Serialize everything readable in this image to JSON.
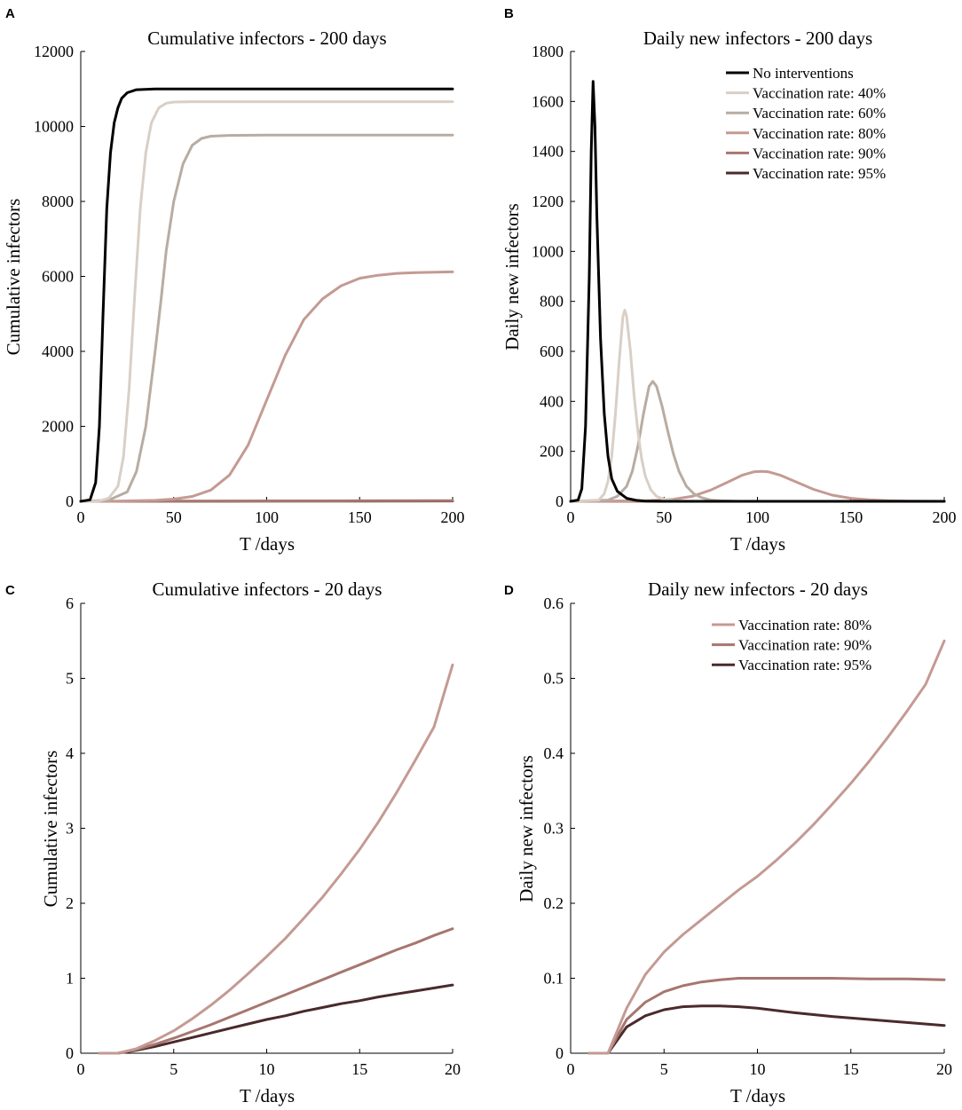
{
  "figure": {
    "colors": {
      "no_interventions": "#000000",
      "vacc40": "#d9cfc6",
      "vacc60": "#b8aca2",
      "vacc80": "#c49a93",
      "vacc90": "#a77670",
      "vacc95": "#4a2a2c"
    }
  },
  "chart_data": [
    {
      "panel": "A",
      "type": "line",
      "title": "Cumulative infectors - 200 days",
      "xlabel": "T /days",
      "ylabel": "Cumulative infectors",
      "xlim": [
        0,
        200
      ],
      "ylim": [
        0,
        12000
      ],
      "xticks": [
        "0",
        "50",
        "100",
        "150",
        "200"
      ],
      "yticks": [
        "0",
        "2000",
        "4000",
        "6000",
        "8000",
        "10000",
        "12000"
      ],
      "legend": null,
      "series": [
        {
          "name": "No interventions",
          "color": "#000000",
          "x": [
            0,
            5,
            8,
            10,
            12,
            14,
            16,
            18,
            20,
            22,
            25,
            30,
            40,
            50,
            100,
            200
          ],
          "y": [
            0,
            40,
            500,
            2000,
            5000,
            7800,
            9300,
            10100,
            10500,
            10750,
            10900,
            10980,
            11000,
            11000,
            11000,
            11000
          ]
        },
        {
          "name": "Vaccination rate: 40%",
          "color": "#d9cfc6",
          "x": [
            0,
            10,
            15,
            20,
            23,
            26,
            29,
            32,
            35,
            38,
            42,
            46,
            50,
            60,
            100,
            200
          ],
          "y": [
            0,
            10,
            80,
            400,
            1200,
            3000,
            5500,
            7800,
            9300,
            10100,
            10500,
            10620,
            10650,
            10660,
            10660,
            10660
          ]
        },
        {
          "name": "Vaccination rate: 60%",
          "color": "#b8aca2",
          "x": [
            0,
            15,
            25,
            30,
            35,
            40,
            43,
            46,
            50,
            55,
            60,
            65,
            70,
            80,
            100,
            200
          ],
          "y": [
            0,
            30,
            250,
            800,
            2000,
            4000,
            5300,
            6700,
            8000,
            9000,
            9500,
            9680,
            9740,
            9760,
            9770,
            9770
          ]
        },
        {
          "name": "Vaccination rate: 80%",
          "color": "#c49a93",
          "x": [
            0,
            20,
            40,
            50,
            60,
            70,
            80,
            90,
            100,
            110,
            120,
            130,
            140,
            150,
            160,
            170,
            180,
            200
          ],
          "y": [
            0,
            5,
            25,
            60,
            130,
            300,
            700,
            1500,
            2700,
            3900,
            4850,
            5400,
            5750,
            5950,
            6030,
            6080,
            6100,
            6120
          ]
        },
        {
          "name": "Vaccination rate: 90%",
          "color": "#a77670",
          "x": [
            0,
            50,
            100,
            150,
            200
          ],
          "y": [
            0,
            3,
            8,
            14,
            20
          ]
        },
        {
          "name": "Vaccination rate: 95%",
          "color": "#4a2a2c",
          "x": [
            0,
            50,
            100,
            150,
            200
          ],
          "y": [
            0,
            2,
            4,
            7,
            10
          ]
        }
      ]
    },
    {
      "panel": "B",
      "type": "line",
      "title": "Daily new infectors - 200 days",
      "xlabel": "T /days",
      "ylabel": "Daily new infectors",
      "xlim": [
        0,
        200
      ],
      "ylim": [
        0,
        1800
      ],
      "xticks": [
        "0",
        "50",
        "100",
        "150",
        "200"
      ],
      "yticks": [
        "0",
        "200",
        "400",
        "600",
        "800",
        "1000",
        "1200",
        "1400",
        "1600",
        "1800"
      ],
      "legend": "top-right",
      "series": [
        {
          "name": "No interventions",
          "color": "#000000",
          "x": [
            0,
            4,
            6,
            8,
            10,
            11,
            12,
            13,
            14,
            16,
            18,
            20,
            22,
            25,
            30,
            35,
            40,
            50,
            200
          ],
          "y": [
            0,
            5,
            50,
            300,
            900,
            1400,
            1680,
            1500,
            1150,
            650,
            350,
            180,
            90,
            40,
            12,
            4,
            1,
            0,
            0
          ]
        },
        {
          "name": "Vaccination rate: 40%",
          "color": "#d9cfc6",
          "x": [
            0,
            15,
            18,
            20,
            22,
            24,
            26,
            28,
            29,
            30,
            32,
            34,
            36,
            38,
            40,
            43,
            46,
            50,
            55,
            60,
            70,
            200
          ],
          "y": [
            0,
            5,
            30,
            80,
            180,
            350,
            560,
            740,
            765,
            740,
            600,
            420,
            280,
            170,
            100,
            45,
            20,
            8,
            2,
            0,
            0,
            0
          ]
        },
        {
          "name": "Vaccination rate: 60%",
          "color": "#b8aca2",
          "x": [
            0,
            20,
            25,
            30,
            33,
            36,
            39,
            42,
            44,
            46,
            49,
            52,
            55,
            58,
            62,
            66,
            70,
            75,
            80,
            90,
            200
          ],
          "y": [
            0,
            5,
            20,
            60,
            120,
            220,
            350,
            460,
            480,
            460,
            380,
            280,
            190,
            120,
            60,
            30,
            15,
            5,
            2,
            0,
            0
          ]
        },
        {
          "name": "Vaccination rate: 80%",
          "color": "#c49a93",
          "x": [
            0,
            40,
            55,
            65,
            75,
            85,
            92,
            98,
            102,
            106,
            112,
            120,
            130,
            140,
            150,
            160,
            170,
            180,
            200
          ],
          "y": [
            0,
            2,
            8,
            20,
            45,
            80,
            105,
            118,
            120,
            118,
            105,
            80,
            48,
            25,
            12,
            6,
            3,
            1,
            0
          ]
        },
        {
          "name": "Vaccination rate: 90%",
          "color": "#a77670",
          "x": [
            0,
            100,
            200
          ],
          "y": [
            0,
            0.1,
            0.1
          ]
        },
        {
          "name": "Vaccination rate: 95%",
          "color": "#4a2a2c",
          "x": [
            0,
            100,
            200
          ],
          "y": [
            0,
            0.05,
            0.04
          ]
        }
      ]
    },
    {
      "panel": "C",
      "type": "line",
      "title": "Cumulative infectors - 20 days",
      "xlabel": "T /days",
      "ylabel": "Cumulative infectors",
      "xlim": [
        0,
        20
      ],
      "ylim": [
        0,
        6
      ],
      "xticks": [
        "0",
        "5",
        "10",
        "15",
        "20"
      ],
      "yticks": [
        "0",
        "1",
        "2",
        "3",
        "4",
        "5",
        "6"
      ],
      "legend": null,
      "series": [
        {
          "name": "Vaccination rate: 80%",
          "color": "#c49a93",
          "x": [
            1,
            2,
            3,
            4,
            5,
            6,
            7,
            8,
            9,
            10,
            11,
            12,
            13,
            14,
            15,
            16,
            17,
            18,
            19,
            20
          ],
          "y": [
            0,
            0,
            0.06,
            0.17,
            0.3,
            0.46,
            0.64,
            0.84,
            1.06,
            1.29,
            1.53,
            1.8,
            2.08,
            2.39,
            2.72,
            3.08,
            3.48,
            3.91,
            4.35,
            5.18
          ]
        },
        {
          "name": "Vaccination rate: 90%",
          "color": "#a77670",
          "x": [
            1,
            2,
            3,
            4,
            5,
            6,
            7,
            8,
            9,
            10,
            11,
            12,
            13,
            14,
            15,
            16,
            17,
            18,
            19,
            20
          ],
          "y": [
            0,
            0,
            0.05,
            0.12,
            0.2,
            0.29,
            0.38,
            0.48,
            0.58,
            0.68,
            0.78,
            0.88,
            0.98,
            1.08,
            1.18,
            1.28,
            1.38,
            1.47,
            1.57,
            1.66
          ]
        },
        {
          "name": "Vaccination rate: 95%",
          "color": "#4a2a2c",
          "x": [
            1,
            2,
            3,
            4,
            5,
            6,
            7,
            8,
            9,
            10,
            11,
            12,
            13,
            14,
            15,
            16,
            17,
            18,
            19,
            20
          ],
          "y": [
            0,
            0,
            0.04,
            0.09,
            0.15,
            0.21,
            0.27,
            0.33,
            0.39,
            0.45,
            0.5,
            0.56,
            0.61,
            0.66,
            0.7,
            0.75,
            0.79,
            0.83,
            0.87,
            0.91
          ]
        }
      ]
    },
    {
      "panel": "D",
      "type": "line",
      "title": "Daily new infectors - 20 days",
      "xlabel": "T /days",
      "ylabel": "Daily new infectors",
      "xlim": [
        0,
        20
      ],
      "ylim": [
        0,
        0.6
      ],
      "xticks": [
        "0",
        "5",
        "10",
        "15",
        "20"
      ],
      "yticks": [
        "0",
        "0.1",
        "0.2",
        "0.3",
        "0.4",
        "0.5",
        "0.6"
      ],
      "legend": "top-right",
      "series": [
        {
          "name": "Vaccination rate: 80%",
          "color": "#c49a93",
          "x": [
            1,
            2,
            3,
            4,
            5,
            6,
            7,
            8,
            9,
            10,
            11,
            12,
            13,
            14,
            15,
            16,
            17,
            18,
            19,
            20
          ],
          "y": [
            0,
            0,
            0.06,
            0.105,
            0.135,
            0.158,
            0.178,
            0.198,
            0.218,
            0.236,
            0.257,
            0.28,
            0.305,
            0.332,
            0.36,
            0.39,
            0.422,
            0.456,
            0.492,
            0.55
          ]
        },
        {
          "name": "Vaccination rate: 90%",
          "color": "#a77670",
          "x": [
            1,
            2,
            3,
            4,
            5,
            6,
            7,
            8,
            9,
            10,
            12,
            14,
            16,
            18,
            20
          ],
          "y": [
            0,
            0,
            0.045,
            0.068,
            0.082,
            0.09,
            0.095,
            0.098,
            0.1,
            0.1,
            0.1,
            0.1,
            0.099,
            0.099,
            0.098
          ]
        },
        {
          "name": "Vaccination rate: 95%",
          "color": "#4a2a2c",
          "x": [
            1,
            2,
            3,
            4,
            5,
            6,
            7,
            8,
            9,
            10,
            12,
            14,
            16,
            18,
            20
          ],
          "y": [
            0,
            0,
            0.035,
            0.05,
            0.058,
            0.062,
            0.063,
            0.063,
            0.062,
            0.06,
            0.054,
            0.049,
            0.045,
            0.041,
            0.037
          ]
        }
      ]
    }
  ]
}
